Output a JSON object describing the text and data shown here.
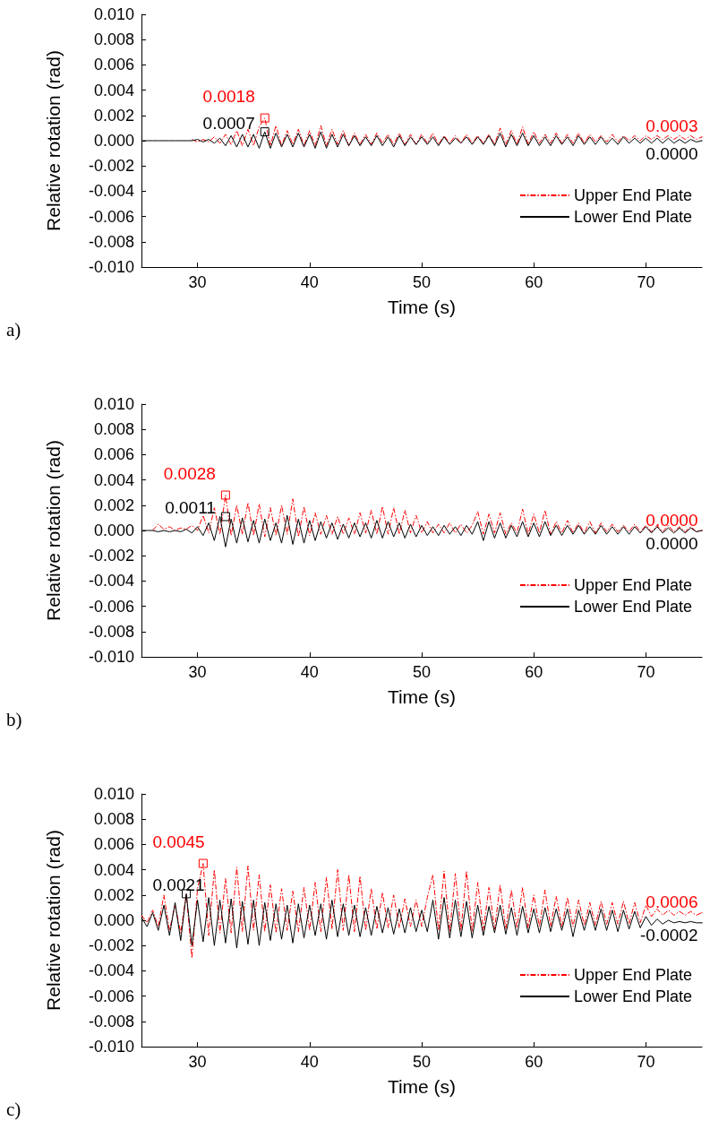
{
  "chart_data": [
    {
      "type": "line",
      "title": "a)",
      "xlabel": "Time (s)",
      "ylabel": "Relative rotation (rad)",
      "xlim": [
        25,
        75
      ],
      "xticks": [
        30,
        40,
        50,
        60,
        70
      ],
      "ylim": [
        -0.01,
        0.01
      ],
      "yticks": [
        {
          "value": -0.01,
          "label": "-0.010"
        },
        {
          "value": -0.008,
          "label": "-0.008"
        },
        {
          "value": -0.006,
          "label": "-0.006"
        },
        {
          "value": -0.004,
          "label": "-0.004"
        },
        {
          "value": -0.002,
          "label": "-0.002"
        },
        {
          "value": 0,
          "label": "0.000"
        },
        {
          "value": 0.002,
          "label": "0.002"
        },
        {
          "value": 0.004,
          "label": "0.004"
        },
        {
          "value": 0.006,
          "label": "0.006"
        },
        {
          "value": 0.008,
          "label": "0.008"
        },
        {
          "value": 0.01,
          "label": "0.010"
        }
      ],
      "legend": "bottom right",
      "x": [
        25,
        25.5,
        26,
        26.5,
        27,
        27.5,
        28,
        28.5,
        29,
        29.5,
        30,
        30.5,
        31,
        31.5,
        32,
        32.5,
        33,
        33.5,
        34,
        34.5,
        35,
        35.5,
        36,
        36.5,
        37,
        37.5,
        38,
        38.5,
        39,
        39.5,
        40,
        40.5,
        41,
        41.5,
        42,
        42.5,
        43,
        43.5,
        44,
        44.5,
        45,
        45.5,
        46,
        46.5,
        47,
        47.5,
        48,
        48.5,
        49,
        49.5,
        50,
        50.5,
        51,
        51.5,
        52,
        52.5,
        53,
        53.5,
        54,
        54.5,
        55,
        55.5,
        56,
        56.5,
        57,
        57.5,
        58,
        58.5,
        59,
        59.5,
        60,
        60.5,
        61,
        61.5,
        62,
        62.5,
        63,
        63.5,
        64,
        64.5,
        65,
        65.5,
        66,
        66.5,
        67,
        67.5,
        68,
        68.5,
        69,
        69.5,
        70,
        70.5,
        71,
        71.5,
        72,
        72.5,
        73,
        73.5,
        74,
        74.5,
        75
      ],
      "series": [
        {
          "name": "Upper End Plate",
          "color": "#ff0000",
          "line_style": "dashed",
          "values": [
            null,
            null,
            null,
            null,
            null,
            null,
            null,
            null,
            null,
            0.0001,
            -0.0001,
            0.0001,
            -0.0001,
            0.0003,
            -0.0002,
            0.0005,
            -0.0003,
            0.0008,
            -0.0004,
            0.0009,
            -0.0004,
            0.0011,
            0.0018,
            -0.0004,
            0.0012,
            -0.0004,
            0.0008,
            -0.0003,
            0.0009,
            -0.0004,
            0.0008,
            -0.0004,
            0.0012,
            -0.0004,
            0.0009,
            -0.0003,
            0.0008,
            -0.0004,
            0.0006,
            -0.0003,
            0.0005,
            -0.0003,
            0.0006,
            -0.0002,
            0.0005,
            -0.0003,
            0.0006,
            -0.0003,
            0.0005,
            -0.0003,
            0.0005,
            -0.0002,
            0.0006,
            -0.0003,
            0.0004,
            -0.0002,
            0.0004,
            -0.0002,
            0.0005,
            -0.0002,
            0.0004,
            -0.0002,
            0.0005,
            -0.0003,
            0.001,
            -0.0003,
            0.0008,
            -0.0003,
            0.0011,
            -0.0003,
            0.0007,
            -0.0002,
            0.0005,
            -0.0002,
            0.0006,
            -0.0002,
            0.0005,
            -0.0002,
            0.0006,
            -0.0002,
            0.0005,
            -0.0001,
            0.0004,
            -0.0001,
            0.0005,
            -0.0001,
            0.0004,
            0,
            0.0004,
            0,
            0.0004,
            0.0001,
            0.0004,
            0.0001,
            0.0004,
            0.0001,
            0.0004,
            0.0001,
            0.0004,
            0.0001,
            0.0003
          ]
        },
        {
          "name": "Lower End Plate",
          "color": "#000000",
          "line_style": "solid",
          "values": [
            0,
            0,
            0,
            0,
            0,
            0,
            0,
            0,
            0,
            0,
            0.0001,
            -0.0001,
            0.0001,
            -0.0002,
            0.0002,
            -0.0004,
            0.0004,
            -0.0005,
            0.0005,
            -0.0005,
            0.0005,
            -0.0006,
            0.0007,
            -0.0006,
            0.0006,
            -0.0005,
            0.0005,
            -0.0005,
            0.0006,
            -0.0005,
            0.0005,
            -0.0006,
            0.0007,
            -0.0006,
            0.0005,
            -0.0005,
            0.0005,
            -0.0004,
            0.0004,
            -0.0004,
            0.0003,
            -0.0004,
            0.0004,
            -0.0004,
            0.0003,
            -0.0005,
            0.0004,
            -0.0004,
            0.0003,
            -0.0003,
            0.0003,
            -0.0003,
            0.0003,
            -0.0004,
            0.0003,
            -0.0003,
            0.0002,
            -0.0002,
            0.0003,
            -0.0003,
            0.0003,
            -0.0003,
            0.0004,
            -0.0004,
            0.0006,
            -0.0005,
            0.0005,
            -0.0004,
            0.0006,
            -0.0004,
            0.0004,
            -0.0004,
            0.0003,
            -0.0004,
            0.0004,
            -0.0003,
            0.0003,
            -0.0004,
            0.0004,
            -0.0003,
            0.0003,
            -0.0003,
            0.0003,
            -0.0003,
            0.0002,
            -0.0003,
            0.0003,
            -0.0002,
            0.0002,
            -0.0002,
            0.0002,
            -0.0002,
            0.0002,
            -0.0002,
            0.0002,
            -0.0002,
            0.0001,
            -0.0002,
            0.0001,
            -0.0001,
            0
          ]
        }
      ],
      "annotations": [
        {
          "text": "0.0018",
          "x": 36,
          "y": 0.0018
        },
        {
          "text": "0.0007",
          "x": 36,
          "y": 0.0007
        },
        {
          "text": "0.0003",
          "x": 75,
          "y": 0.0003
        },
        {
          "text": "0.0000",
          "x": 75,
          "y": 0
        }
      ]
    },
    {
      "type": "line",
      "title": "b)",
      "xlabel": "Time (s)",
      "ylabel": "Relative rotation (rad)",
      "xlim": [
        25,
        75
      ],
      "xticks": [
        30,
        40,
        50,
        60,
        70
      ],
      "ylim": [
        -0.01,
        0.01
      ],
      "yticks": [
        {
          "value": -0.01,
          "label": "-0.010"
        },
        {
          "value": -0.008,
          "label": "-0.008"
        },
        {
          "value": -0.006,
          "label": "-0.006"
        },
        {
          "value": -0.004,
          "label": "-0.004"
        },
        {
          "value": -0.002,
          "label": "-0.002"
        },
        {
          "value": 0,
          "label": "0.000"
        },
        {
          "value": 0.002,
          "label": "0.002"
        },
        {
          "value": 0.004,
          "label": "0.004"
        },
        {
          "value": 0.006,
          "label": "0.006"
        },
        {
          "value": 0.008,
          "label": "0.008"
        },
        {
          "value": 0.01,
          "label": "0.010"
        }
      ],
      "legend": "bottom right",
      "x": [
        25,
        25.5,
        26,
        26.5,
        27,
        27.5,
        28,
        28.5,
        29,
        29.5,
        30,
        30.5,
        31,
        31.5,
        32,
        32.5,
        33,
        33.5,
        34,
        34.5,
        35,
        35.5,
        36,
        36.5,
        37,
        37.5,
        38,
        38.5,
        39,
        39.5,
        40,
        40.5,
        41,
        41.5,
        42,
        42.5,
        43,
        43.5,
        44,
        44.5,
        45,
        45.5,
        46,
        46.5,
        47,
        47.5,
        48,
        48.5,
        49,
        49.5,
        50,
        50.5,
        51,
        51.5,
        52,
        52.5,
        53,
        53.5,
        54,
        54.5,
        55,
        55.5,
        56,
        56.5,
        57,
        57.5,
        58,
        58.5,
        59,
        59.5,
        60,
        60.5,
        61,
        61.5,
        62,
        62.5,
        63,
        63.5,
        64,
        64.5,
        65,
        65.5,
        66,
        66.5,
        67,
        67.5,
        68,
        68.5,
        69,
        69.5,
        70,
        70.5,
        71,
        71.5,
        72,
        72.5,
        73,
        73.5,
        74,
        74.5,
        75
      ],
      "series": [
        {
          "name": "Upper End Plate",
          "color": "#ff0000",
          "line_style": "dashed",
          "values": [
            null,
            null,
            0,
            0.0005,
            0.0001,
            0.0003,
            0,
            0.0002,
            0.0001,
            0.0004,
            0,
            0.0012,
            -0.0002,
            0.0018,
            -0.0003,
            0.0028,
            -0.0004,
            0.002,
            -0.0003,
            0.0022,
            -0.0004,
            0.0021,
            -0.0005,
            0.0018,
            -0.0004,
            0.002,
            -0.0003,
            0.0025,
            -0.0005,
            0.0019,
            -0.0004,
            0.0014,
            -0.0003,
            0.0012,
            -0.0003,
            0.0011,
            -0.0003,
            0.001,
            -0.0003,
            0.0014,
            -0.0002,
            0.0016,
            -0.0003,
            0.0019,
            -0.0003,
            0.0018,
            -0.0003,
            0.0016,
            -0.0002,
            0.0012,
            -0.0002,
            0.0007,
            -0.0002,
            0.0005,
            -0.0002,
            0.0006,
            -0.0002,
            0.0005,
            -0.0002,
            0.0004,
            0.0015,
            -0.0003,
            0.0013,
            -0.0002,
            0.0014,
            -0.0003,
            0.0006,
            -0.0002,
            0.0017,
            -0.0003,
            0.0013,
            -0.0002,
            0.0016,
            -0.0003,
            0.0007,
            -0.0002,
            0.0008,
            -0.0002,
            0.0006,
            -0.0002,
            0.0007,
            -0.0002,
            0.0006,
            -0.0001,
            0.0005,
            -0.0001,
            0.0004,
            -0.0001,
            0.0005,
            -0.0001,
            0.0004,
            -0.0001,
            0.0004,
            -0.0001,
            0.0004,
            -0.0001,
            0.0003,
            -0.0001,
            0.0003,
            -0.0001,
            0
          ]
        },
        {
          "name": "Lower End Plate",
          "color": "#000000",
          "line_style": "solid",
          "values": [
            0,
            0,
            0,
            -0.0001,
            0,
            -0.0001,
            0,
            -0.0001,
            0.0001,
            -0.0002,
            0.0003,
            -0.0004,
            0.0006,
            -0.0008,
            0.0011,
            -0.0013,
            0.0009,
            -0.001,
            0.001,
            -0.0009,
            0.0008,
            -0.001,
            0.0009,
            -0.0008,
            0.0006,
            -0.001,
            0.0012,
            -0.0011,
            0.0009,
            -0.001,
            0.0008,
            -0.0008,
            0.0007,
            -0.0006,
            0.0006,
            -0.0007,
            0.0005,
            -0.0006,
            0.0006,
            -0.0005,
            0.0006,
            -0.0006,
            0.0008,
            -0.0006,
            0.0007,
            -0.0005,
            0.0006,
            -0.0006,
            0.0005,
            -0.0005,
            0.0004,
            -0.0004,
            0.0003,
            -0.0004,
            0.0004,
            -0.0003,
            0.0003,
            -0.0004,
            0.0004,
            -0.0003,
            0.0007,
            -0.0008,
            0.0007,
            -0.0006,
            0.0006,
            -0.0006,
            0.0004,
            -0.0005,
            0.0007,
            -0.0005,
            0.0006,
            -0.0005,
            0.0007,
            -0.0004,
            0.0004,
            -0.0004,
            0.0004,
            -0.0003,
            0.0004,
            -0.0003,
            0.0003,
            -0.0003,
            0.0004,
            -0.0003,
            0.0003,
            -0.0003,
            0.0003,
            -0.0003,
            0.0003,
            -0.0002,
            0.0003,
            -0.0002,
            0.0003,
            -0.0002,
            0.0002,
            -0.0002,
            0.0002,
            -0.0002,
            0.0002,
            -0.0001,
            0
          ]
        }
      ],
      "annotations": [
        {
          "text": "0.0028",
          "x": 32.5,
          "y": 0.0028
        },
        {
          "text": "0.0011",
          "x": 32.5,
          "y": 0.0011
        },
        {
          "text": "0.0000",
          "x": 75,
          "y": 0
        },
        {
          "text": "0.0000",
          "x": 75,
          "y": 0
        }
      ]
    },
    {
      "type": "line",
      "title": "c)",
      "xlabel": "Time (s)",
      "ylabel": "Relative rotation (rad)",
      "xlim": [
        25,
        75
      ],
      "xticks": [
        30,
        40,
        50,
        60,
        70
      ],
      "ylim": [
        -0.01,
        0.01
      ],
      "yticks": [
        {
          "value": -0.01,
          "label": "-0.010"
        },
        {
          "value": -0.008,
          "label": "-0.008"
        },
        {
          "value": -0.006,
          "label": "-0.006"
        },
        {
          "value": -0.004,
          "label": "-0.004"
        },
        {
          "value": -0.002,
          "label": "-0.002"
        },
        {
          "value": 0,
          "label": "0.000"
        },
        {
          "value": 0.002,
          "label": "0.002"
        },
        {
          "value": 0.004,
          "label": "0.004"
        },
        {
          "value": 0.006,
          "label": "0.006"
        },
        {
          "value": 0.008,
          "label": "0.008"
        },
        {
          "value": 0.01,
          "label": "0.010"
        }
      ],
      "legend": "bottom right",
      "x": [
        25,
        25.5,
        26,
        26.5,
        27,
        27.5,
        28,
        28.5,
        29,
        29.5,
        30,
        30.5,
        31,
        31.5,
        32,
        32.5,
        33,
        33.5,
        34,
        34.5,
        35,
        35.5,
        36,
        36.5,
        37,
        37.5,
        38,
        38.5,
        39,
        39.5,
        40,
        40.5,
        41,
        41.5,
        42,
        42.5,
        43,
        43.5,
        44,
        44.5,
        45,
        45.5,
        46,
        46.5,
        47,
        47.5,
        48,
        48.5,
        49,
        49.5,
        50,
        50.5,
        51,
        51.5,
        52,
        52.5,
        53,
        53.5,
        54,
        54.5,
        55,
        55.5,
        56,
        56.5,
        57,
        57.5,
        58,
        58.5,
        59,
        59.5,
        60,
        60.5,
        61,
        61.5,
        62,
        62.5,
        63,
        63.5,
        64,
        64.5,
        65,
        65.5,
        66,
        66.5,
        67,
        67.5,
        68,
        68.5,
        69,
        69.5,
        70,
        70.5,
        71,
        71.5,
        72,
        72.5,
        73,
        73.5,
        74,
        74.5,
        75
      ],
      "series": [
        {
          "name": "Upper End Plate",
          "color": "#ff0000",
          "line_style": "dashed",
          "values": [
            0.0004,
            -0.0002,
            0.0008,
            -0.0005,
            0.002,
            -0.0008,
            0.0012,
            -0.001,
            0.0021,
            -0.003,
            0.0025,
            0.0045,
            -0.0012,
            0.004,
            -0.001,
            0.0033,
            -0.001,
            0.0042,
            -0.0009,
            0.0043,
            -0.0008,
            0.0036,
            -0.0009,
            0.0028,
            -0.001,
            0.0025,
            -0.0008,
            0.0023,
            -0.0009,
            0.0026,
            -0.0008,
            0.003,
            -0.0009,
            0.0034,
            -0.0007,
            0.004,
            -0.0008,
            0.0036,
            -0.0009,
            0.0035,
            -0.0008,
            0.0025,
            -0.0007,
            0.0022,
            -0.0006,
            0.002,
            -0.0006,
            0.0017,
            -0.0005,
            0.0016,
            -0.0005,
            0.0018,
            0.0036,
            -0.0008,
            0.0039,
            -0.0009,
            0.0037,
            -0.0008,
            0.0039,
            -0.0009,
            0.003,
            -0.0008,
            0.0026,
            -0.0007,
            0.0028,
            -0.0007,
            0.0024,
            -0.0006,
            0.0026,
            -0.0006,
            0.002,
            -0.0005,
            0.0024,
            -0.0005,
            0.0019,
            -0.0005,
            0.0018,
            -0.0005,
            0.0016,
            -0.0004,
            0.0014,
            -0.0004,
            0.0015,
            -0.0003,
            0.0014,
            -0.0003,
            0.0015,
            -0.0003,
            0.0014,
            -0.0002,
            0.0012,
            0.0003,
            0.0009,
            0.0004,
            0.0008,
            0.0004,
            0.0007,
            0.0004,
            0.0007,
            0.0004,
            0.0006
          ]
        },
        {
          "name": "Lower End Plate",
          "color": "#000000",
          "line_style": "solid",
          "values": [
            0.0002,
            -0.0005,
            0.0006,
            -0.0008,
            0.0012,
            -0.0012,
            0.0014,
            -0.0016,
            0.0021,
            -0.002,
            0.0016,
            -0.0017,
            0.0018,
            -0.002,
            0.0016,
            -0.0018,
            0.0017,
            -0.0022,
            0.0015,
            -0.0019,
            0.0016,
            -0.002,
            0.0014,
            -0.0016,
            0.0013,
            -0.0015,
            0.0012,
            -0.0018,
            0.0013,
            -0.0014,
            0.0012,
            -0.0012,
            0.0013,
            -0.0015,
            0.0016,
            -0.0013,
            0.0013,
            -0.0012,
            0.0012,
            -0.0013,
            0.001,
            -0.0012,
            0.0011,
            -0.001,
            0.001,
            -0.0011,
            0.0009,
            -0.001,
            0.001,
            -0.0009,
            0.0008,
            -0.0009,
            0.0016,
            -0.0015,
            0.0018,
            -0.0014,
            0.0016,
            -0.0013,
            0.0015,
            -0.0014,
            0.0012,
            -0.0012,
            0.0011,
            -0.001,
            0.0012,
            -0.0011,
            0.001,
            -0.0012,
            0.0011,
            -0.001,
            0.0009,
            -0.001,
            0.001,
            -0.0009,
            0.0009,
            -0.0008,
            0.0009,
            -0.0013,
            0.0008,
            -0.0008,
            0.0008,
            -0.0008,
            0.0009,
            -0.0008,
            0.0008,
            -0.0009,
            0.0008,
            -0.0007,
            0.0007,
            -0.0006,
            0.0003,
            -0.0004,
            0.0001,
            -0.0003,
            0,
            -0.0002,
            -0.0001,
            -0.0002,
            -0.0001,
            -0.0002,
            -0.0002
          ]
        }
      ],
      "annotations": [
        {
          "text": "0.0045",
          "x": 30.5,
          "y": 0.0045
        },
        {
          "text": "0.0021",
          "x": 29,
          "y": 0.0021
        },
        {
          "text": "0.0006",
          "x": 75,
          "y": 0.0006
        },
        {
          "text": "-0.0002",
          "x": 75,
          "y": -0.0002
        }
      ]
    }
  ]
}
